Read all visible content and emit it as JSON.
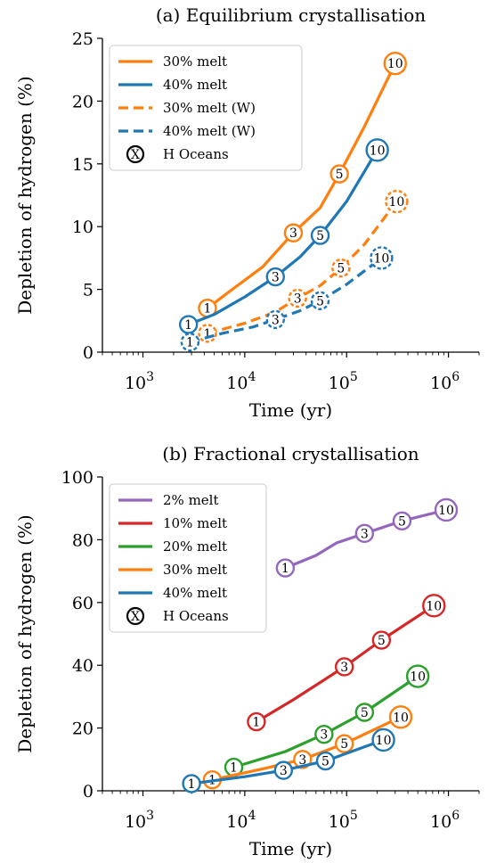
{
  "chart_data": [
    {
      "type": "line",
      "title": "(a) Equilibrium crystallisation",
      "xlabel": "Time (yr)",
      "ylabel": "Depletion of hydrogen (%)",
      "xscale": "log",
      "xlim": [
        400,
        2000000
      ],
      "ylim": [
        0,
        25
      ],
      "yticks": [
        0,
        5,
        10,
        15,
        20,
        25
      ],
      "xticks": [
        {
          "base": "10",
          "exp": "3",
          "value": 1000
        },
        {
          "base": "10",
          "exp": "4",
          "value": 10000
        },
        {
          "base": "10",
          "exp": "5",
          "value": 100000
        },
        {
          "base": "10",
          "exp": "6",
          "value": 1000000
        }
      ],
      "grid": false,
      "legend_position": "top-left",
      "legend_marker_label": "H Oceans",
      "legend_marker_symbol": "X",
      "series": [
        {
          "name": "30% melt",
          "color": "#ff7f0e",
          "dashed": false,
          "x": [
            4300,
            7000,
            15000,
            30000,
            55000,
            85000,
            150000,
            300000
          ],
          "y": [
            3.5,
            4.8,
            6.8,
            9.5,
            11.5,
            14.2,
            18.0,
            23.0
          ],
          "markers": [
            {
              "x": 4300,
              "y": 3.5,
              "label": "1"
            },
            {
              "x": 30000,
              "y": 9.5,
              "label": "3"
            },
            {
              "x": 85000,
              "y": 14.2,
              "label": "5"
            },
            {
              "x": 300000,
              "y": 23.0,
              "label": "10"
            }
          ]
        },
        {
          "name": "40% melt",
          "color": "#1f77b4",
          "dashed": false,
          "x": [
            2800,
            5000,
            10000,
            20000,
            35000,
            55000,
            100000,
            200000
          ],
          "y": [
            2.2,
            3.0,
            4.4,
            6.0,
            7.6,
            9.3,
            12.0,
            16.1
          ],
          "markers": [
            {
              "x": 2800,
              "y": 2.2,
              "label": "1"
            },
            {
              "x": 20000,
              "y": 6.0,
              "label": "3"
            },
            {
              "x": 55000,
              "y": 9.3,
              "label": "5"
            },
            {
              "x": 200000,
              "y": 16.1,
              "label": "10"
            }
          ]
        },
        {
          "name": "30% melt (W)",
          "color": "#ff7f0e",
          "dashed": true,
          "x": [
            4300,
            10000,
            20000,
            33000,
            55000,
            88000,
            150000,
            310000
          ],
          "y": [
            1.5,
            2.3,
            3.2,
            4.3,
            5.3,
            6.7,
            8.6,
            12.0
          ],
          "markers": [
            {
              "x": 4300,
              "y": 1.5,
              "label": "1"
            },
            {
              "x": 33000,
              "y": 4.3,
              "label": "3"
            },
            {
              "x": 88000,
              "y": 6.7,
              "label": "5"
            },
            {
              "x": 310000,
              "y": 12.0,
              "label": "10"
            }
          ]
        },
        {
          "name": "40% melt (W)",
          "color": "#1f77b4",
          "dashed": true,
          "x": [
            2900,
            6000,
            12000,
            20000,
            35000,
            55000,
            100000,
            220000
          ],
          "y": [
            0.8,
            1.5,
            2.0,
            2.6,
            3.3,
            4.1,
            5.4,
            7.5
          ],
          "markers": [
            {
              "x": 2900,
              "y": 0.8,
              "label": "1"
            },
            {
              "x": 20000,
              "y": 2.6,
              "label": "3"
            },
            {
              "x": 55000,
              "y": 4.1,
              "label": "5"
            },
            {
              "x": 220000,
              "y": 7.5,
              "label": "10"
            }
          ]
        }
      ]
    },
    {
      "type": "line",
      "title": "(b) Fractional crystallisation",
      "xlabel": "Time (yr)",
      "ylabel": "Depletion of hydrogen (%)",
      "xscale": "log",
      "xlim": [
        400,
        2000000
      ],
      "ylim": [
        0,
        100
      ],
      "yticks": [
        0,
        20,
        40,
        60,
        80,
        100
      ],
      "xticks": [
        {
          "base": "10",
          "exp": "3",
          "value": 1000
        },
        {
          "base": "10",
          "exp": "4",
          "value": 10000
        },
        {
          "base": "10",
          "exp": "5",
          "value": 100000
        },
        {
          "base": "10",
          "exp": "6",
          "value": 1000000
        }
      ],
      "grid": false,
      "legend_position": "top-left",
      "legend_marker_label": "H Oceans",
      "legend_marker_symbol": "X",
      "series": [
        {
          "name": "2% melt",
          "color": "#9467bd",
          "dashed": false,
          "x": [
            25000,
            50000,
            80000,
            150000,
            350000,
            950000
          ],
          "y": [
            71,
            75,
            79,
            82,
            86,
            89.5
          ],
          "markers": [
            {
              "x": 25000,
              "y": 71,
              "label": "1"
            },
            {
              "x": 150000,
              "y": 82,
              "label": "3"
            },
            {
              "x": 350000,
              "y": 86,
              "label": "5"
            },
            {
              "x": 950000,
              "y": 89.5,
              "label": "10"
            }
          ]
        },
        {
          "name": "10% melt",
          "color": "#d62728",
          "dashed": false,
          "x": [
            13000,
            30000,
            95000,
            220000,
            720000
          ],
          "y": [
            22,
            29,
            39.5,
            48,
            59
          ],
          "markers": [
            {
              "x": 13000,
              "y": 22,
              "label": "1"
            },
            {
              "x": 95000,
              "y": 39.5,
              "label": "3"
            },
            {
              "x": 220000,
              "y": 48,
              "label": "5"
            },
            {
              "x": 720000,
              "y": 59,
              "label": "10"
            }
          ]
        },
        {
          "name": "20% melt",
          "color": "#2ca02c",
          "dashed": false,
          "x": [
            7800,
            25000,
            60000,
            150000,
            500000
          ],
          "y": [
            7.5,
            12.5,
            18,
            25,
            36.5
          ],
          "markers": [
            {
              "x": 7800,
              "y": 7.5,
              "label": "1"
            },
            {
              "x": 60000,
              "y": 18,
              "label": "3"
            },
            {
              "x": 150000,
              "y": 25,
              "label": "5"
            },
            {
              "x": 500000,
              "y": 36.5,
              "label": "10"
            }
          ]
        },
        {
          "name": "30% melt",
          "color": "#ff7f0e",
          "dashed": false,
          "x": [
            4800,
            15000,
            37000,
            95000,
            340000
          ],
          "y": [
            3.5,
            7,
            10,
            15,
            23.5
          ],
          "markers": [
            {
              "x": 4800,
              "y": 3.5,
              "label": "1"
            },
            {
              "x": 37000,
              "y": 10,
              "label": "3"
            },
            {
              "x": 95000,
              "y": 15,
              "label": "5"
            },
            {
              "x": 340000,
              "y": 23.5,
              "label": "10"
            }
          ]
        },
        {
          "name": "40% melt",
          "color": "#1f77b4",
          "dashed": false,
          "x": [
            3000,
            10000,
            24000,
            62000,
            230000
          ],
          "y": [
            2.3,
            4.5,
            6.5,
            9.5,
            16.2
          ],
          "markers": [
            {
              "x": 3000,
              "y": 2.3,
              "label": "1"
            },
            {
              "x": 24000,
              "y": 6.5,
              "label": "3"
            },
            {
              "x": 62000,
              "y": 9.5,
              "label": "5"
            },
            {
              "x": 230000,
              "y": 16.2,
              "label": "10"
            }
          ]
        }
      ]
    }
  ]
}
